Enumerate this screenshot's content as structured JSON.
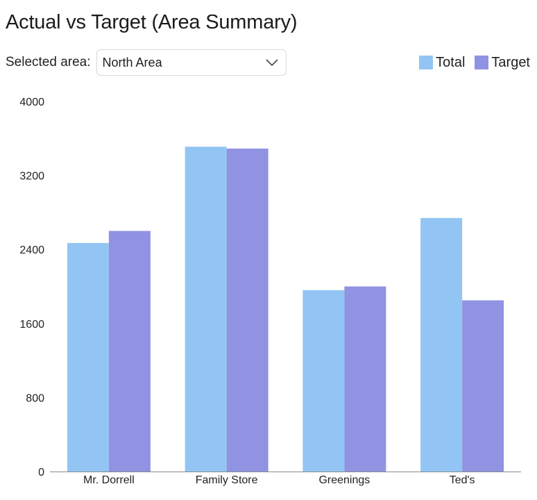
{
  "page": {
    "title": "Actual vs Target (Area Summary)",
    "selector_label": "Selected area:",
    "selected_area": "North Area",
    "chevron_icon": "chevron-down-icon"
  },
  "chart_data": {
    "type": "bar",
    "categories": [
      "Mr. Dorrell",
      "Family Store",
      "Greenings",
      "Ted's"
    ],
    "series": [
      {
        "name": "Total",
        "values": [
          2470,
          3510,
          1960,
          2740
        ],
        "color": "#92c5f4"
      },
      {
        "name": "Target",
        "values": [
          2600,
          3490,
          2000,
          1850
        ],
        "color": "#8f93e1"
      }
    ],
    "yticks": [
      "0",
      "800",
      "1600",
      "2400",
      "3200",
      "4000"
    ],
    "ylim": [
      0,
      4000
    ],
    "grid": false,
    "legend_position": "top-right"
  }
}
